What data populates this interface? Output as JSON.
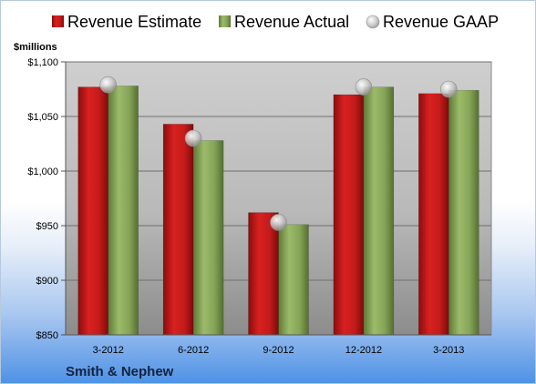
{
  "chart_data": {
    "type": "bar",
    "title": "",
    "ylabel": "$millions",
    "xlabel": "",
    "categories": [
      "3-2012",
      "6-2012",
      "9-2012",
      "12-2012",
      "3-2013"
    ],
    "series": [
      {
        "name": "Revenue Estimate",
        "kind": "bar",
        "color": "#cc1f1f",
        "values": [
          1077,
          1043,
          962,
          1070,
          1071
        ]
      },
      {
        "name": "Revenue Actual",
        "kind": "bar",
        "color": "#8ba85a",
        "values": [
          1078,
          1028,
          951,
          1077,
          1074
        ]
      },
      {
        "name": "Revenue GAAP",
        "kind": "marker",
        "color": "#b9b9b9",
        "values": [
          1079,
          1030,
          953,
          1077,
          1075
        ]
      }
    ],
    "ylim": [
      850,
      1100
    ],
    "yticks": [
      {
        "value": 850,
        "label": "$850"
      },
      {
        "value": 900,
        "label": "$900"
      },
      {
        "value": 950,
        "label": "$950"
      },
      {
        "value": 1000,
        "label": "$1,000"
      },
      {
        "value": 1050,
        "label": "$1,050"
      },
      {
        "value": 1100,
        "label": "$1,100"
      }
    ],
    "grid": true,
    "legend": "top",
    "company": "Smith & Nephew"
  }
}
